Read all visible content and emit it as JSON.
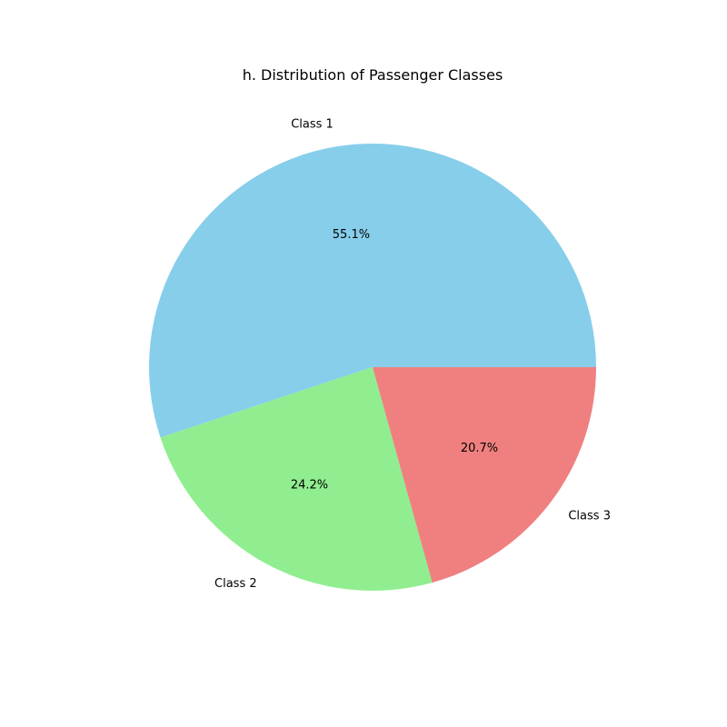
{
  "chart_data": {
    "type": "pie",
    "title": "h. Distribution of Passenger Classes",
    "categories": [
      "Class 1",
      "Class 2",
      "Class 3"
    ],
    "values": [
      55.1,
      24.2,
      20.7
    ],
    "value_labels": [
      "55.1%",
      "24.2%",
      "20.7%"
    ],
    "colors": [
      "#87ceeb",
      "#90ee90",
      "#f08080"
    ],
    "start_angle_deg": 0,
    "direction": "counterclockwise",
    "legend": "none"
  }
}
